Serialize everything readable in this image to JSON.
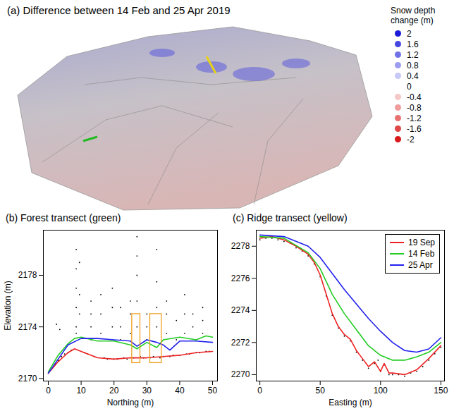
{
  "chart_data": [
    {
      "type": "map",
      "title": "(a) Difference between 14 Feb and 25 Apr 2019",
      "colorbar": {
        "title": "Snow depth change (m)",
        "values": [
          2,
          1.6,
          1.2,
          0.8,
          0.4,
          0,
          -0.4,
          -0.8,
          -1.2,
          -1.6,
          -2
        ],
        "colors": [
          "#1a1ad8",
          "#4646e0",
          "#7272e8",
          "#9c9cf0",
          "#c8c8f6",
          null,
          "#f6c8c8",
          "#f09c9c",
          "#e87272",
          "#e04646",
          "#d81a1a"
        ]
      },
      "transect_colors": [
        "#22bb22",
        "#e6d21a"
      ]
    },
    {
      "type": "line",
      "title": "(b) Forest transect (green)",
      "x_label": "Northing (m)",
      "y_label": "Elevation (m)",
      "xlim": [
        -1.5,
        51.5
      ],
      "xticks": [
        0,
        10,
        20,
        30,
        40,
        50
      ],
      "ylim": [
        2169.8,
        2181.5
      ],
      "yticks": [
        2170,
        2174,
        2178
      ],
      "series": [
        {
          "type": "scatter",
          "color": "#000000",
          "x": [
            0.5,
            2,
            3,
            4,
            5,
            6,
            7,
            11,
            12,
            14,
            17,
            18,
            20,
            21,
            23,
            24,
            26,
            28,
            29,
            31,
            32,
            34,
            35,
            37,
            38,
            40,
            42,
            43,
            45,
            46,
            48,
            49,
            2.5,
            3.5,
            8.5,
            8.5,
            8.5,
            8.5,
            8.5,
            8.5,
            9.5,
            9.5,
            9.5,
            13,
            13,
            13,
            13,
            16,
            16,
            16,
            19.5,
            19.5,
            19.5,
            22,
            22,
            22,
            25,
            25,
            25,
            27,
            27,
            27,
            27,
            27,
            30,
            30,
            30,
            33,
            33,
            33,
            33,
            36,
            36,
            36,
            39,
            39,
            41.5,
            41.5,
            41.5,
            44,
            44,
            47,
            47,
            47
          ],
          "values": [
            2170.6,
            2171.1,
            2171.4,
            2171.7,
            2171.9,
            2172.0,
            2172.2,
            2172.0,
            2171.9,
            2171.7,
            2171.6,
            2171.5,
            2171.5,
            2171.5,
            2171.6,
            2171.5,
            2171.6,
            2171.7,
            2171.6,
            2171.6,
            2171.7,
            2171.6,
            2171.7,
            2171.7,
            2171.8,
            2171.8,
            2171.9,
            2171.9,
            2172.0,
            2172.0,
            2172.1,
            2172.1,
            2174.2,
            2173.8,
            2173.5,
            2174.0,
            2175.5,
            2177.0,
            2178.5,
            2180.0,
            2175.0,
            2176.5,
            2179.0,
            2173.0,
            2174.0,
            2175.0,
            2176.0,
            2173.5,
            2175.0,
            2176.5,
            2174.0,
            2175.5,
            2177.0,
            2173.0,
            2174.0,
            2175.5,
            2173.5,
            2175.0,
            2176.0,
            2174.0,
            2176.0,
            2178.0,
            2179.5,
            2181.0,
            2173.0,
            2174.0,
            2175.0,
            2174.0,
            2175.5,
            2177.5,
            2180.0,
            2173.5,
            2175.0,
            2176.0,
            2173.0,
            2174.5,
            2173.5,
            2175.0,
            2176.5,
            2174.0,
            2175.0,
            2173.5,
            2174.5,
            2175.5
          ]
        },
        {
          "color": "#ee2222",
          "x": [
            0,
            3,
            6,
            8,
            10,
            15,
            20,
            25,
            30,
            35,
            40,
            45,
            50
          ],
          "values": [
            2170.4,
            2171.3,
            2172.0,
            2172.3,
            2172.1,
            2171.6,
            2171.5,
            2171.6,
            2171.6,
            2171.7,
            2171.8,
            2172.0,
            2172.1
          ]
        },
        {
          "color": "#22cc22",
          "x": [
            0,
            3,
            6,
            8,
            10,
            15,
            20,
            25,
            27,
            30,
            33,
            35,
            40,
            45,
            48,
            50
          ],
          "values": [
            2170.5,
            2171.8,
            2172.7,
            2173.1,
            2173.2,
            2172.9,
            2172.9,
            2172.6,
            2172.3,
            2172.8,
            2172.4,
            2173.0,
            2173.2,
            2173.0,
            2173.3,
            2173.2
          ]
        },
        {
          "color": "#2222ee",
          "x": [
            0,
            3,
            6,
            10,
            15,
            20,
            25,
            27,
            30,
            33,
            35,
            37,
            40,
            45,
            50
          ],
          "values": [
            2170.4,
            2171.5,
            2172.6,
            2173.1,
            2173.1,
            2173.0,
            2172.9,
            2172.5,
            2173.0,
            2172.8,
            2172.6,
            2172.2,
            2172.9,
            2172.9,
            2172.8
          ]
        }
      ],
      "boxes": [
        {
          "x": [
            25.5,
            28
          ],
          "y": [
            2171.2,
            2175
          ]
        },
        {
          "x": [
            31,
            34.5
          ],
          "y": [
            2171.2,
            2175
          ]
        }
      ],
      "box_color": "#f0a020"
    },
    {
      "type": "line",
      "title": "(c) Ridge transect (yellow)",
      "x_label": "Easting (m)",
      "xlim": [
        -3,
        153
      ],
      "xticks": [
        0,
        50,
        100,
        150
      ],
      "ylim": [
        2269.6,
        2279
      ],
      "yticks": [
        2270,
        2272,
        2274,
        2276,
        2278
      ],
      "legend": "topright",
      "series": [
        {
          "type": "scatter",
          "color": "#000000",
          "x": [
            0,
            5,
            10,
            15,
            20,
            25,
            30,
            35,
            40,
            45,
            50,
            55,
            60,
            65,
            70,
            75,
            80,
            85,
            90,
            95,
            98,
            100,
            103,
            107,
            110,
            115,
            120,
            125,
            130,
            135,
            140,
            145,
            150
          ],
          "values": [
            2278.4,
            2278.5,
            2278.5,
            2278.4,
            2278.3,
            2278.2,
            2277.9,
            2277.7,
            2277.4,
            2276.9,
            2276.1,
            2274.9,
            2273.7,
            2272.9,
            2272.4,
            2272.1,
            2271.4,
            2270.9,
            2270.4,
            2270.7,
            2270.9,
            2270.2,
            2270.6,
            2270.0,
            2270.0,
            2270.0,
            2269.9,
            2270.1,
            2270.2,
            2270.5,
            2270.9,
            2271.3,
            2271.7
          ]
        },
        {
          "name": "19 Sep",
          "color": "#ee2222",
          "x": [
            0,
            10,
            20,
            30,
            40,
            45,
            50,
            55,
            60,
            65,
            70,
            75,
            80,
            85,
            90,
            95,
            100,
            103,
            107,
            110,
            120,
            130,
            140,
            150
          ],
          "values": [
            2278.5,
            2278.6,
            2278.4,
            2278.0,
            2277.5,
            2277.0,
            2276.2,
            2275.0,
            2273.8,
            2273.0,
            2272.5,
            2272.2,
            2271.5,
            2271.0,
            2270.5,
            2270.8,
            2270.2,
            2270.7,
            2270.1,
            2270.1,
            2270.0,
            2270.3,
            2271.0,
            2271.8
          ]
        },
        {
          "name": "14 Feb",
          "color": "#22cc22",
          "x": [
            0,
            20,
            40,
            50,
            60,
            70,
            80,
            90,
            100,
            110,
            120,
            130,
            140,
            150
          ],
          "values": [
            2278.6,
            2278.5,
            2277.6,
            2276.6,
            2275.0,
            2273.8,
            2272.8,
            2271.8,
            2271.2,
            2270.9,
            2270.9,
            2271.1,
            2271.4,
            2272.0
          ]
        },
        {
          "name": "25 Apr",
          "color": "#2222ee",
          "x": [
            0,
            20,
            40,
            50,
            60,
            70,
            80,
            90,
            100,
            110,
            120,
            130,
            140,
            150
          ],
          "values": [
            2278.7,
            2278.6,
            2278.0,
            2277.3,
            2276.3,
            2275.3,
            2274.4,
            2273.5,
            2272.7,
            2272.0,
            2271.5,
            2271.4,
            2271.6,
            2272.3
          ]
        }
      ]
    }
  ]
}
